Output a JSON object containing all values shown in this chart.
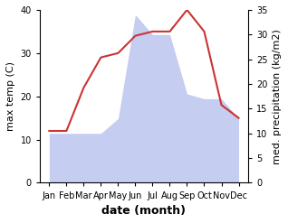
{
  "months": [
    "Jan",
    "Feb",
    "Mar",
    "Apr",
    "May",
    "Jun",
    "Jul",
    "Aug",
    "Sep",
    "Oct",
    "Nov",
    "Dec"
  ],
  "temperature": [
    12.0,
    12.0,
    22.0,
    29.0,
    30.0,
    34.0,
    35.0,
    35.0,
    40.0,
    35.0,
    18.0,
    15.0
  ],
  "precipitation": [
    10.0,
    10.0,
    10.0,
    10.0,
    13.0,
    34.0,
    30.0,
    30.0,
    18.0,
    17.0,
    17.0,
    13.0
  ],
  "temp_color": "#cc3333",
  "precip_fill_color": "#c5cdf0",
  "precip_edge_color": "#8899cc",
  "background_color": "#ffffff",
  "ylim_temp": [
    0,
    40
  ],
  "ylim_precip": [
    0,
    35
  ],
  "yticks_temp": [
    0,
    10,
    20,
    30,
    40
  ],
  "yticks_precip": [
    0,
    5,
    10,
    15,
    20,
    25,
    30,
    35
  ],
  "ylabel_left": "max temp (C)",
  "ylabel_right": "med. precipitation (kg/m2)",
  "xlabel": "date (month)",
  "label_fontsize": 8,
  "tick_fontsize": 7,
  "xlabel_fontsize": 9
}
